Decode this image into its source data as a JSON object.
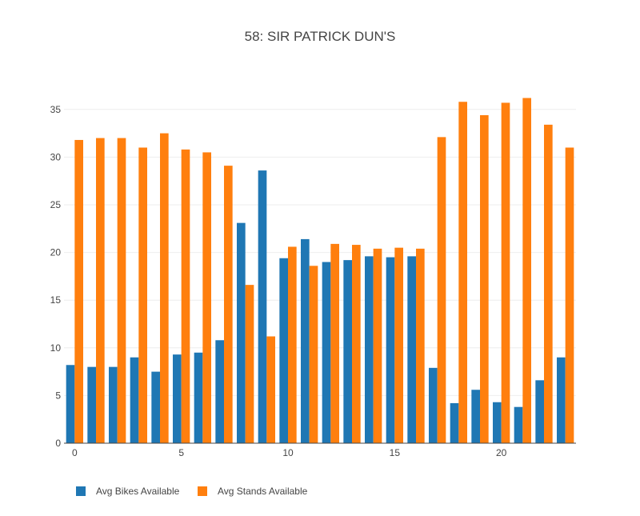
{
  "chart_data": {
    "type": "bar",
    "title": "58: SIR PATRICK DUN'S",
    "xlabel": "",
    "ylabel": "",
    "categories": [
      0,
      1,
      2,
      3,
      4,
      5,
      6,
      7,
      8,
      9,
      10,
      11,
      12,
      13,
      14,
      15,
      16,
      17,
      18,
      19,
      20,
      21,
      22,
      23
    ],
    "xticks": [
      0,
      5,
      10,
      15,
      20
    ],
    "yticks": [
      0,
      5,
      10,
      15,
      20,
      25,
      30,
      35
    ],
    "ylim": [
      0,
      37.5
    ],
    "xlim": [
      -0.5,
      23.5
    ],
    "grid": true,
    "legend_position": "bottom-left",
    "series": [
      {
        "name": "Avg Bikes Available",
        "color": "#1f77b4",
        "values": [
          8.2,
          8.0,
          8.0,
          9.0,
          7.5,
          9.3,
          9.5,
          10.8,
          23.1,
          28.6,
          19.4,
          21.4,
          19.0,
          19.2,
          19.6,
          19.5,
          19.6,
          7.9,
          4.2,
          5.6,
          4.3,
          3.8,
          6.6,
          9.0
        ]
      },
      {
        "name": "Avg Stands Available",
        "color": "#ff7f0e",
        "values": [
          31.8,
          32.0,
          32.0,
          31.0,
          32.5,
          30.8,
          30.5,
          29.1,
          16.6,
          11.2,
          20.6,
          18.6,
          20.9,
          20.8,
          20.4,
          20.5,
          20.4,
          32.1,
          35.8,
          34.4,
          35.7,
          36.2,
          33.4,
          31.0
        ]
      }
    ]
  }
}
